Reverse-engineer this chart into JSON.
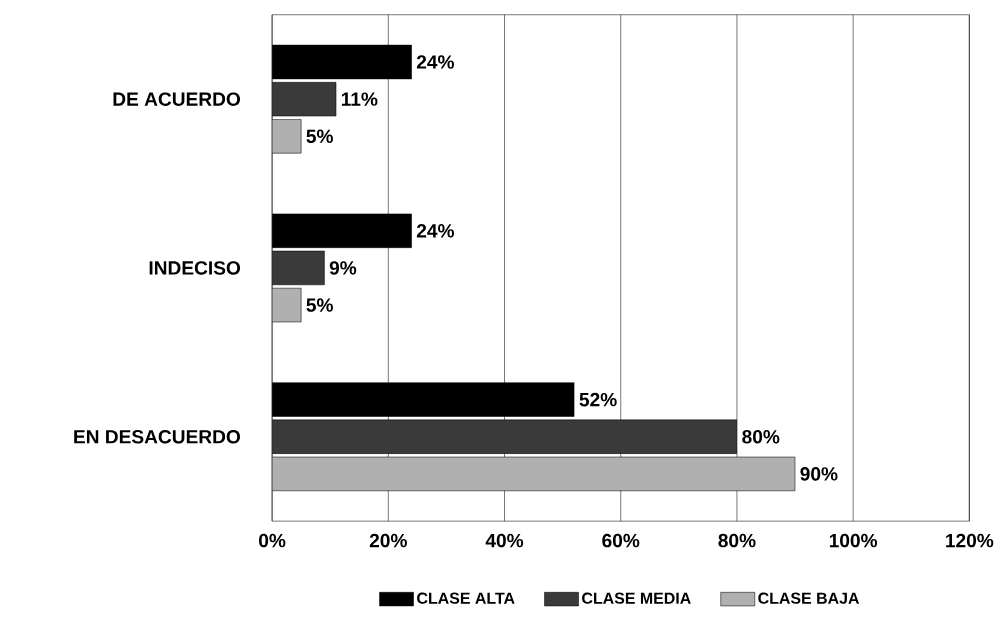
{
  "chart_data": {
    "type": "bar",
    "orientation": "horizontal",
    "categories": [
      "DE ACUERDO",
      "INDECISO",
      "EN DESACUERDO"
    ],
    "series": [
      {
        "name": "CLASE ALTA",
        "color": "#000000",
        "values": [
          24,
          24,
          52
        ],
        "value_labels": [
          "24%",
          "24%",
          "52%"
        ]
      },
      {
        "name": "CLASE MEDIA",
        "color": "#3a3a3a",
        "values": [
          11,
          9,
          80
        ],
        "value_labels": [
          "11%",
          "9%",
          "80%"
        ]
      },
      {
        "name": "CLASE BAJA",
        "color": "#b0b0b0",
        "values": [
          5,
          5,
          90
        ],
        "value_labels": [
          "5%",
          "5%",
          "90%"
        ]
      }
    ],
    "xlim": [
      0,
      120
    ],
    "xticks": [
      {
        "value": 0,
        "label": "0%"
      },
      {
        "value": 20,
        "label": "20%"
      },
      {
        "value": 40,
        "label": "40%"
      },
      {
        "value": 60,
        "label": "60%"
      },
      {
        "value": 80,
        "label": "80%"
      },
      {
        "value": 100,
        "label": "100%"
      },
      {
        "value": 120,
        "label": "120%"
      }
    ],
    "grid": "x",
    "legend": "bottom"
  }
}
